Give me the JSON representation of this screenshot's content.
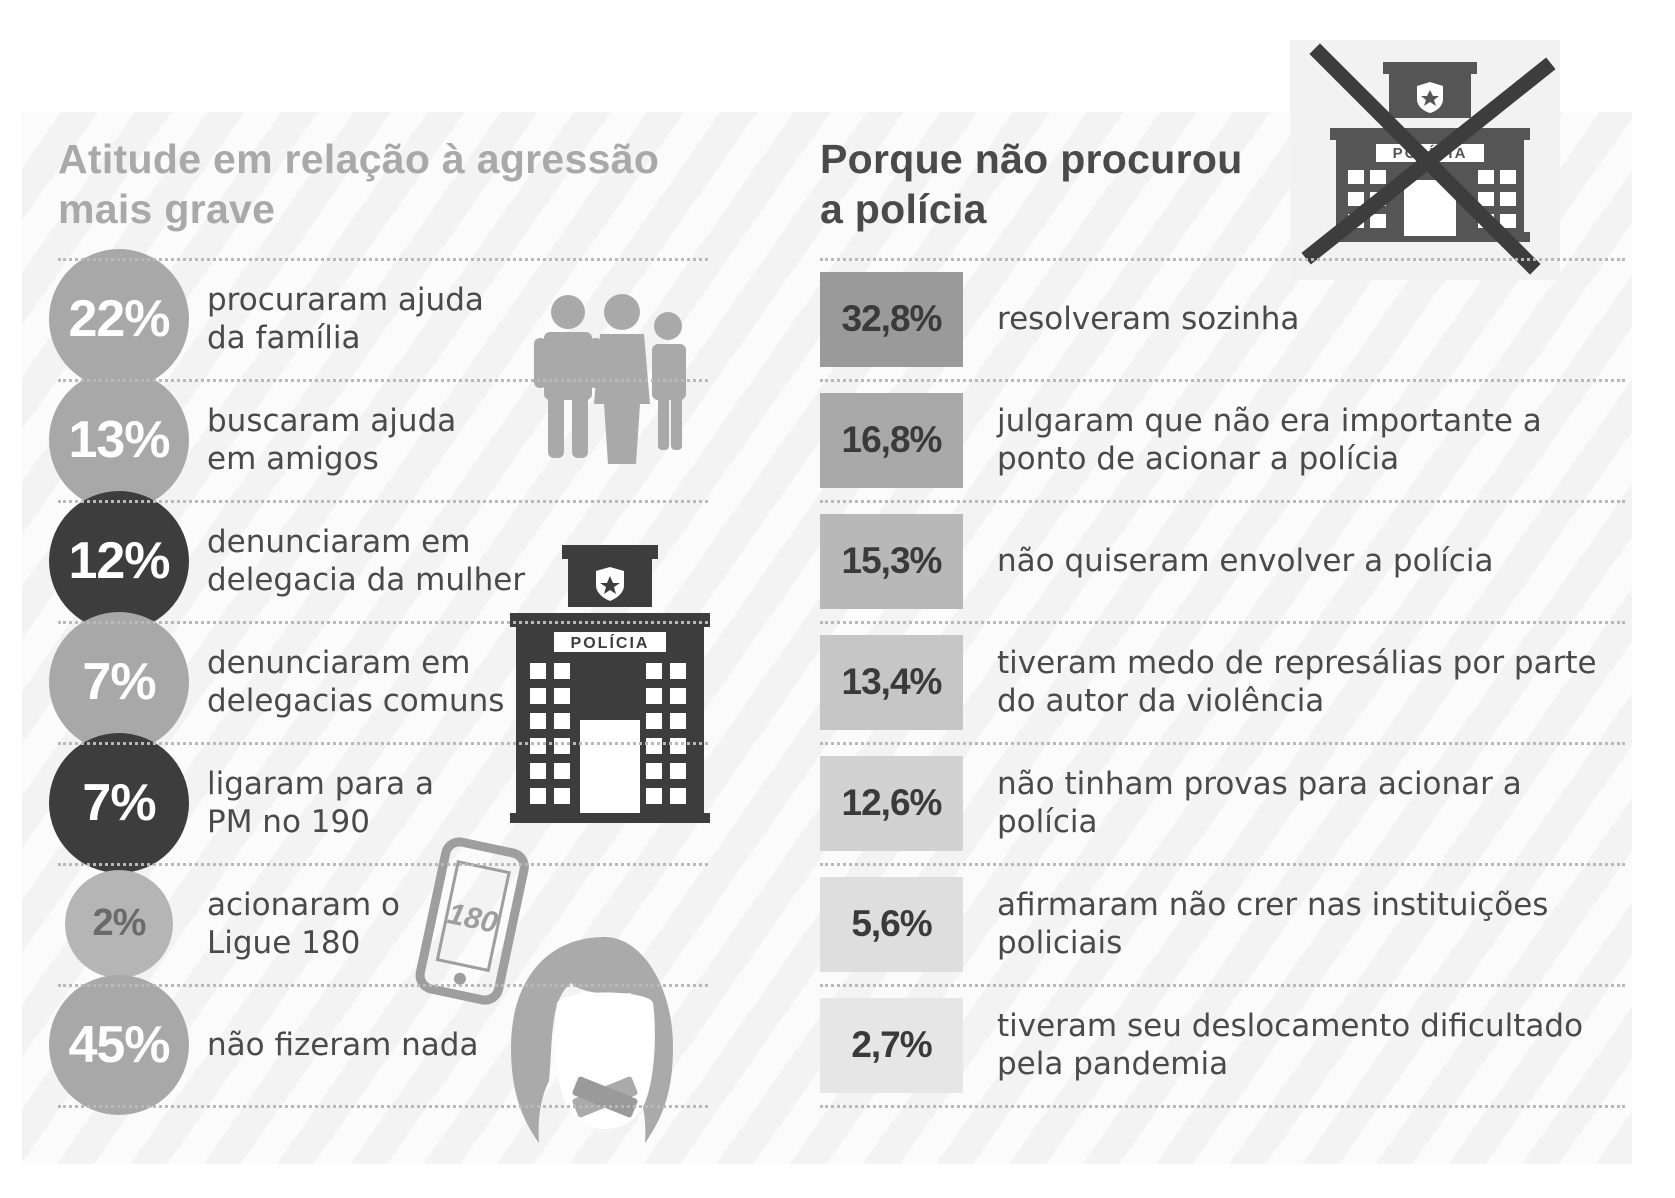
{
  "colors": {
    "dark": "#3d3d3d",
    "medium": "#9e9e9e",
    "light": "#b5b5b5",
    "box_levels": [
      "#9a9a9a",
      "#a9a9a9",
      "#b8b8b8",
      "#c6c6c6",
      "#d2d2d2",
      "#dedede",
      "#e6e6e6"
    ]
  },
  "left": {
    "title": "Atitude em relação à agressão\nmais grave"
  },
  "right": {
    "title": "Porque não procurou\na polícia"
  },
  "icons": {
    "family": "family-icon",
    "police_station": "police-station-icon",
    "police_label": "POLÍCIA",
    "crossed_police": "crossed-police-station-icon",
    "crossed_police_label": "POLÍCIA",
    "phone": "phone-icon",
    "phone_label": "180",
    "silenced_woman": "silenced-woman-icon"
  },
  "chart_data": [
    {
      "type": "bar",
      "title": "Atitude em relação à agressão mais grave",
      "categories": [
        "procuraram ajuda\nda família",
        "buscaram ajuda\nem amigos",
        "denunciaram em\ndelegacia da mulher",
        "denunciaram em\ndelegacias comuns",
        "ligaram para a\nPM no 190",
        "acionaram o\nLigue 180",
        "não fizeram nada"
      ],
      "values": [
        22,
        13,
        12,
        7,
        7,
        2,
        45
      ],
      "labels": [
        "22%",
        "13%",
        "12%",
        "7%",
        "7%",
        "2%",
        "45%"
      ],
      "styles": [
        "medium",
        "medium",
        "dark",
        "medium",
        "dark",
        "medium",
        "medium"
      ]
    },
    {
      "type": "bar",
      "title": "Porque não procurou a polícia",
      "categories": [
        "resolveram sozinha",
        "julgaram que não era importante a\nponto de acionar a polícia",
        "não quiseram envolver a polícia",
        "tiveram medo de represálias por parte\ndo autor da violência",
        "não tinham provas para acionar a polícia",
        "afirmaram não crer nas instituições\npoliciais",
        "tiveram seu deslocamento dificultado\npela pandemia"
      ],
      "values": [
        32.8,
        16.8,
        15.3,
        13.4,
        12.6,
        5.6,
        2.7
      ],
      "labels": [
        "32,8%",
        "16,8%",
        "15,3%",
        "13,4%",
        "12,6%",
        "5,6%",
        "2,7%"
      ]
    }
  ]
}
